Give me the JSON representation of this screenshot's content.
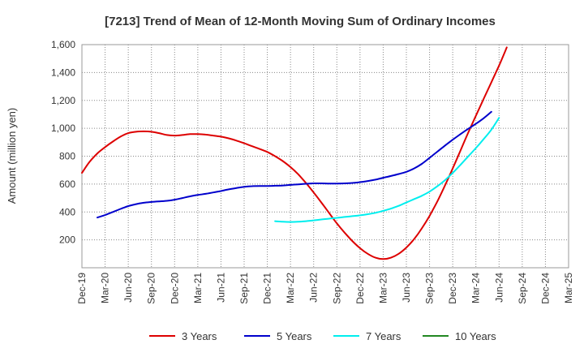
{
  "chart_data": {
    "type": "line",
    "title": "[7213]  Trend of Mean of 12-Month Moving Sum of Ordinary Incomes",
    "ylabel": "Amount (million yen)",
    "xlabel": "",
    "ylim": [
      0,
      1600
    ],
    "y_ticks": [
      200,
      400,
      600,
      800,
      1000,
      1200,
      1400,
      1600
    ],
    "y_tick_labels": [
      "200",
      "400",
      "600",
      "800",
      "1,000",
      "1,200",
      "1,400",
      "1,600"
    ],
    "x_ticks": [
      "Dec-19",
      "Mar-20",
      "Jun-20",
      "Sep-20",
      "Dec-20",
      "Mar-21",
      "Jun-21",
      "Sep-21",
      "Dec-21",
      "Mar-22",
      "Jun-22",
      "Sep-22",
      "Dec-22",
      "Mar-23",
      "Jun-23",
      "Sep-23",
      "Dec-23",
      "Mar-24",
      "Jun-24",
      "Sep-24",
      "Dec-24",
      "Mar-25"
    ],
    "grid": true,
    "legend_position": "bottom",
    "series": [
      {
        "name": "3 Years",
        "color": "#dd0000",
        "start_index": 0,
        "values": [
          680,
          760,
          820,
          865,
          905,
          940,
          965,
          975,
          978,
          975,
          965,
          952,
          948,
          952,
          958,
          958,
          955,
          948,
          940,
          928,
          912,
          893,
          872,
          852,
          830,
          800,
          765,
          722,
          670,
          608,
          540,
          468,
          393,
          318,
          252,
          192,
          140,
          100,
          72,
          62,
          72,
          100,
          145,
          205,
          282,
          372,
          475,
          590,
          712,
          840,
          968,
          1090,
          1210,
          1330,
          1450,
          1580
        ]
      },
      {
        "name": "5 Years",
        "color": "#0000cc",
        "start_index": 2,
        "values": [
          360,
          378,
          400,
          422,
          442,
          456,
          466,
          472,
          476,
          480,
          488,
          500,
          512,
          522,
          530,
          540,
          550,
          562,
          572,
          580,
          585,
          586,
          586,
          588,
          590,
          594,
          598,
          602,
          605,
          605,
          604,
          604,
          605,
          608,
          614,
          622,
          632,
          645,
          658,
          672,
          688,
          712,
          745,
          788,
          832,
          876,
          918,
          958,
          996,
          1032,
          1072,
          1118
        ]
      },
      {
        "name": "7 Years",
        "color": "#00eeee",
        "start_index": 25,
        "values": [
          334,
          330,
          328,
          330,
          334,
          340,
          346,
          352,
          358,
          364,
          370,
          376,
          384,
          394,
          408,
          424,
          444,
          468,
          492,
          516,
          546,
          584,
          628,
          680,
          738,
          798,
          858,
          922,
          990,
          1075
        ]
      },
      {
        "name": "10 Years",
        "color": "#228822",
        "start_index": 0,
        "values": []
      }
    ]
  }
}
